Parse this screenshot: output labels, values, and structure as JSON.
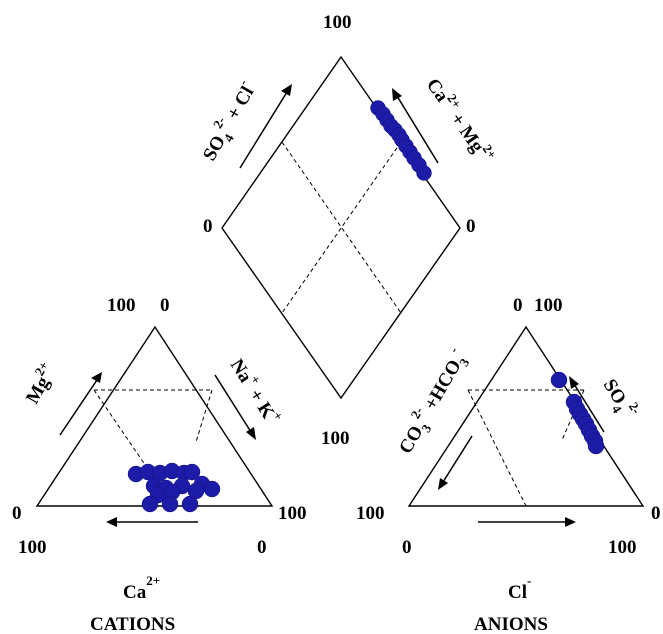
{
  "diagram": {
    "type": "Piper trilinear diagram",
    "point_color": "#1c1ca8"
  },
  "diamond": {
    "label_top": "100",
    "label_left": "0",
    "label_right": "0",
    "label_bottom": "100",
    "left_axis": {
      "main": "SO",
      "sub": "4",
      "sup": "2-",
      "rest": " + Cl",
      "sup2": "-"
    },
    "right_axis": {
      "main": "Ca",
      "sup": "2+",
      "rest": " + Mg",
      "sup2": "2+"
    },
    "points": [
      [
        378,
        108
      ],
      [
        383,
        114
      ],
      [
        387,
        120
      ],
      [
        391,
        126
      ],
      [
        395,
        130
      ],
      [
        399,
        135
      ],
      [
        402,
        140
      ],
      [
        406,
        146
      ],
      [
        410,
        152
      ],
      [
        414,
        158
      ],
      [
        419,
        165
      ],
      [
        424,
        173
      ]
    ]
  },
  "cations": {
    "top_label_left": "100",
    "top_label_right": "0",
    "left_label": "0",
    "left_below": "100",
    "right_label": "100",
    "right_below": "0",
    "mg_axis": {
      "main": "Mg",
      "sup": "2+"
    },
    "nak_axis": {
      "main1": "Na",
      "sup1": "+",
      "mid": " + K",
      "sup2": "+"
    },
    "bottom_axis": {
      "main": "Ca",
      "sup": "2+"
    },
    "title": "CATIONS",
    "points": [
      [
        136,
        474
      ],
      [
        148,
        472
      ],
      [
        160,
        473
      ],
      [
        172,
        471
      ],
      [
        184,
        473
      ],
      [
        192,
        472
      ],
      [
        202,
        484
      ],
      [
        212,
        489
      ],
      [
        154,
        486
      ],
      [
        166,
        488
      ],
      [
        182,
        486
      ],
      [
        158,
        495
      ],
      [
        172,
        492
      ],
      [
        196,
        491
      ],
      [
        150,
        504
      ],
      [
        170,
        504
      ],
      [
        190,
        504
      ]
    ]
  },
  "anions": {
    "top_label_left": "0",
    "top_label_right": "100",
    "left_label": "100",
    "left_below": "0",
    "right_label": "0",
    "right_below": "100",
    "so4_axis": {
      "main": "SO",
      "sub": "4",
      "sup": "2-"
    },
    "co3_axis": {
      "main": "CO",
      "sub": "3",
      "sup": "2-",
      "rest": " +HCO",
      "sub2": "3",
      "sup2": "-"
    },
    "bottom_axis": {
      "main": "Cl",
      "sup": "-"
    },
    "title": "ANIONS",
    "points": [
      [
        559,
        380
      ],
      [
        574,
        402
      ],
      [
        577,
        409
      ],
      [
        580,
        414
      ],
      [
        583,
        419
      ],
      [
        586,
        424
      ],
      [
        589,
        430
      ],
      [
        592,
        436
      ],
      [
        595,
        441
      ],
      [
        596,
        446
      ]
    ]
  }
}
